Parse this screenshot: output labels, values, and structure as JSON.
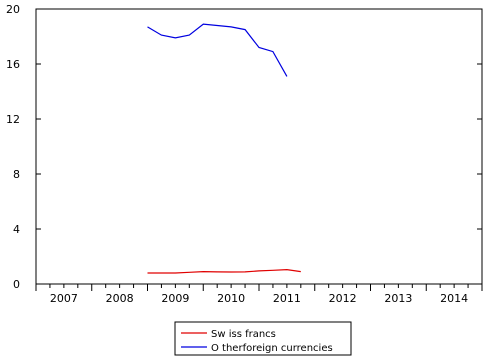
{
  "chart_data": {
    "type": "line",
    "title": "",
    "xlabel": "",
    "ylabel": "",
    "ylim": [
      0,
      20
    ],
    "xlim": [
      2006.5,
      2014.5
    ],
    "yticks": [
      0,
      4,
      8,
      12,
      16,
      20
    ],
    "xtick_labels": [
      "2007",
      "2008",
      "2009",
      "2010",
      "2011",
      "2012",
      "2013",
      "2014"
    ],
    "grid": false,
    "legend_position": "bottom-center",
    "series": [
      {
        "name": "Swiss francs",
        "color": "#e00000",
        "x": [
          "2008Q3",
          "2008Q4",
          "2009Q1",
          "2009Q2",
          "2009Q3",
          "2009Q4",
          "2010Q1",
          "2010Q2",
          "2010Q3",
          "2010Q4",
          "2011Q1",
          "2011Q2"
        ],
        "y": [
          0.8,
          0.8,
          0.8,
          0.85,
          0.9,
          0.88,
          0.87,
          0.88,
          0.95,
          1.0,
          1.05,
          0.9
        ]
      },
      {
        "name": "Other foreign currencies",
        "color": "#0000e0",
        "x": [
          "2008Q3",
          "2008Q4",
          "2009Q1",
          "2009Q2",
          "2009Q3",
          "2009Q4",
          "2010Q1",
          "2010Q2",
          "2010Q3",
          "2010Q4",
          "2011Q1",
          "2011Q2"
        ],
        "y": [
          18.7,
          18.1,
          17.9,
          18.1,
          18.9,
          18.8,
          18.7,
          18.5,
          17.2,
          16.9,
          15.1,
          null
        ]
      }
    ]
  },
  "legend": {
    "items": [
      {
        "label": "Sw iss francs",
        "color": "#e00000"
      },
      {
        "label": "O therforeign currencies",
        "color": "#0000e0"
      }
    ]
  }
}
